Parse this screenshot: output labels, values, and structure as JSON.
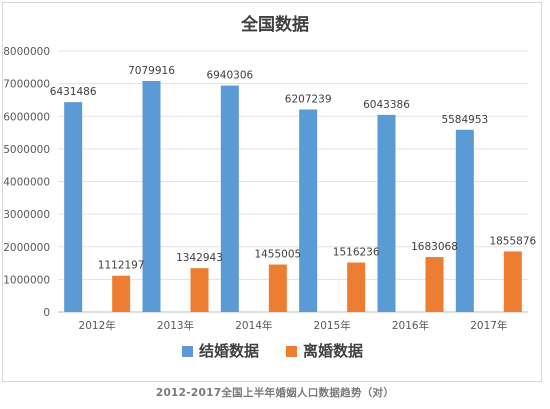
{
  "chart_data": {
    "type": "bar",
    "title": "全国数据",
    "categories": [
      "2012年",
      "2013年",
      "2014年",
      "2015年",
      "2016年",
      "2017年"
    ],
    "series": [
      {
        "name": "结婚数据",
        "color": "#5b9bd5",
        "values": [
          6431486,
          7079916,
          6940306,
          6207239,
          6043386,
          5584953
        ]
      },
      {
        "name": "离婚数据",
        "color": "#ed7d31",
        "values": [
          1112197,
          1342943,
          1455005,
          1516236,
          1683068,
          1855876
        ]
      }
    ],
    "ylim": [
      0,
      8000000
    ],
    "yticks": [
      0,
      1000000,
      2000000,
      3000000,
      4000000,
      5000000,
      6000000,
      7000000,
      8000000
    ],
    "grid": true,
    "legend": "bottom",
    "xlabel": "",
    "ylabel": ""
  },
  "caption": "2012-2017全国上半年婚姻人口数据趋势（对）"
}
